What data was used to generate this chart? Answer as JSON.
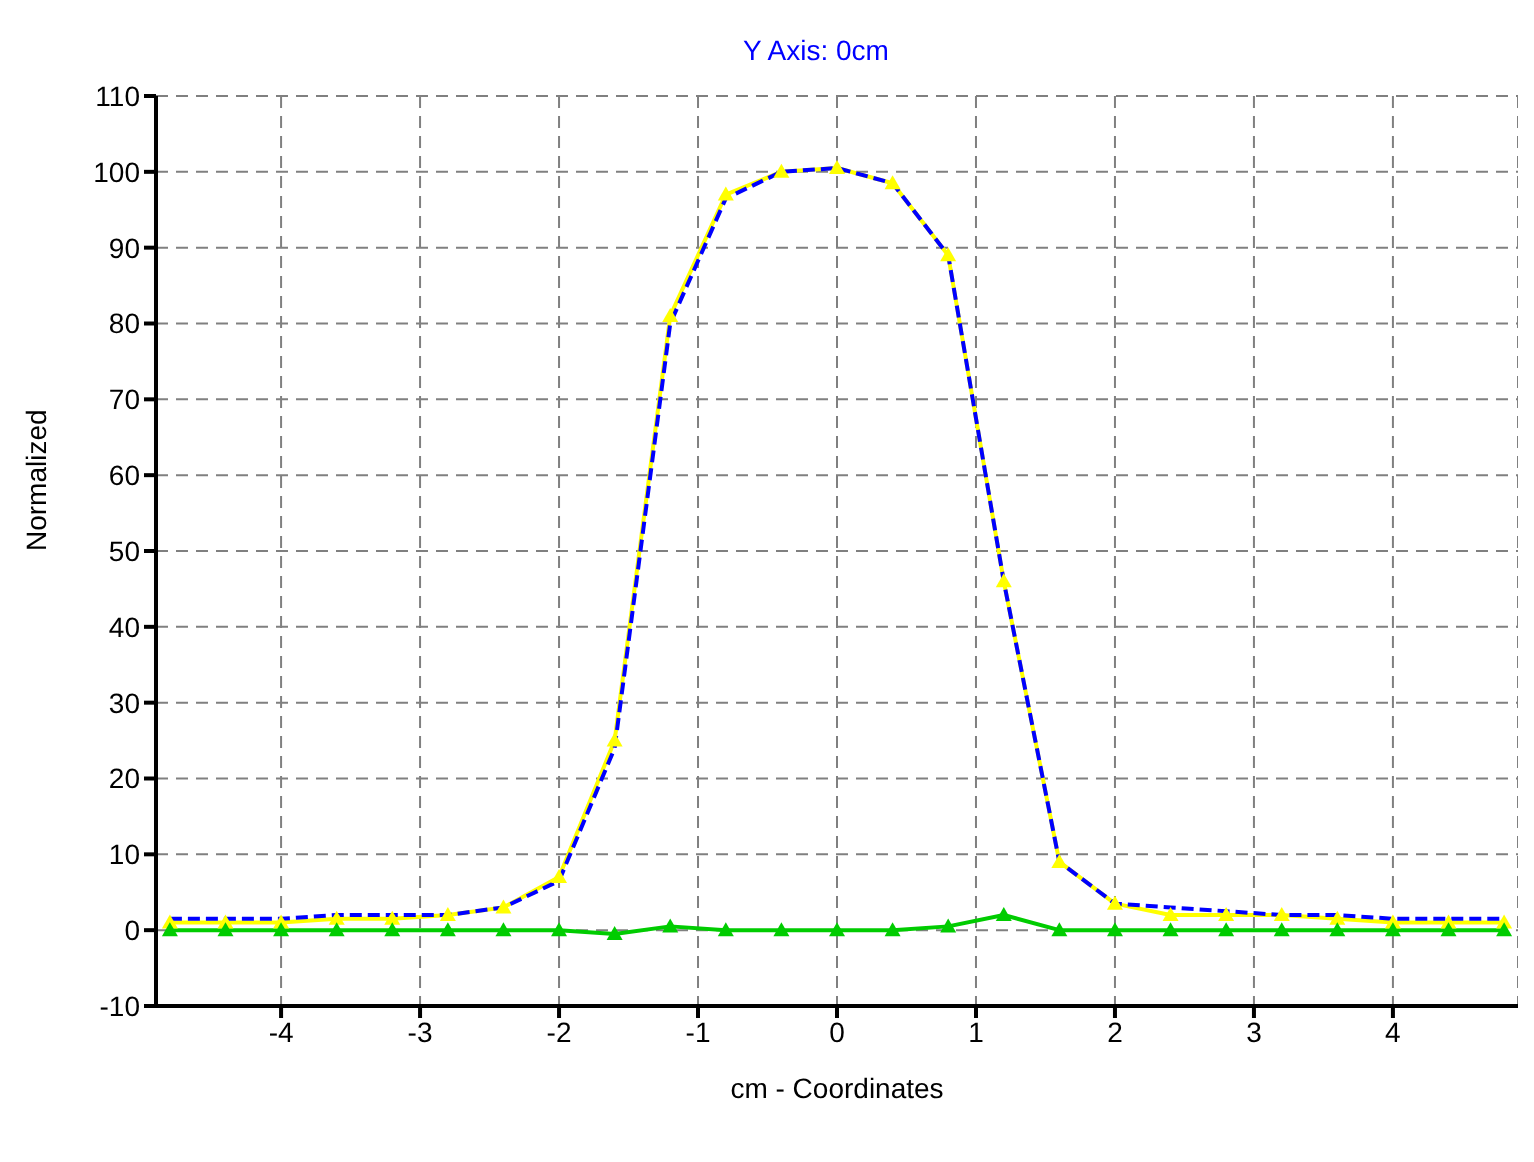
{
  "chart_data": {
    "type": "line",
    "title": "Y Axis: 0cm",
    "xlabel": "cm - Coordinates",
    "ylabel": "Normalized",
    "x": [
      -4.8,
      -4.4,
      -4.0,
      -3.6,
      -3.2,
      -2.8,
      -2.4,
      -2.0,
      -1.6,
      -1.2,
      -0.8,
      -0.4,
      0,
      0.4,
      0.8,
      1.2,
      1.6,
      2.0,
      2.4,
      2.8,
      3.2,
      3.6,
      4.0,
      4.4,
      4.8
    ],
    "series": [
      {
        "color": "#ffff00",
        "marker": "triangle",
        "line_style": "solid",
        "values": [
          1,
          1,
          1,
          1.5,
          1.5,
          2,
          3,
          7,
          25,
          81,
          97,
          100,
          100.5,
          98.5,
          89,
          46,
          9,
          3.5,
          2,
          2,
          2,
          1.5,
          1,
          1,
          1
        ]
      },
      {
        "color": "#0000ff",
        "marker": "none",
        "line_style": "dashed",
        "values": [
          1.5,
          1.5,
          1.5,
          2,
          2,
          2,
          3,
          6.5,
          24,
          80,
          96.5,
          100,
          100.5,
          98.5,
          89,
          46,
          9,
          3.5,
          3,
          2.5,
          2,
          2,
          1.5,
          1.5,
          1.5
        ]
      },
      {
        "color": "#00cc00",
        "marker": "triangle",
        "line_style": "solid",
        "values": [
          0,
          0,
          0,
          0,
          0,
          0,
          0,
          0,
          -0.5,
          0.5,
          0,
          0,
          0,
          0,
          0.5,
          2,
          0,
          0,
          0,
          0,
          0,
          0,
          0,
          0,
          0
        ]
      }
    ],
    "xlim": [
      -4.9,
      4.9
    ],
    "xticks": [
      -4,
      -3,
      -2,
      -1,
      0,
      1,
      2,
      3,
      4
    ],
    "ylim": [
      -10,
      110
    ],
    "yticks": [
      -10,
      0,
      10,
      20,
      30,
      40,
      50,
      60,
      70,
      80,
      90,
      100,
      110
    ],
    "grid": true,
    "legend": false
  }
}
